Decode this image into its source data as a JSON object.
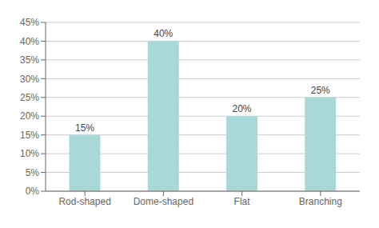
{
  "chart_data": {
    "type": "bar",
    "categories": [
      "Rod-shaped",
      "Dome-shaped",
      "Flat",
      "Branching"
    ],
    "values": [
      15,
      40,
      20,
      25
    ],
    "value_labels": [
      "15%",
      "40%",
      "20%",
      "25%"
    ],
    "data_labels": true,
    "color": "#a8d8d8",
    "ylim": [
      0,
      45
    ],
    "yticks": [
      {
        "value": 0,
        "label": "0%"
      },
      {
        "value": 5,
        "label": "5%"
      },
      {
        "value": 10,
        "label": "10%"
      },
      {
        "value": 15,
        "label": "15%"
      },
      {
        "value": 20,
        "label": "20%"
      },
      {
        "value": 25,
        "label": "25%"
      },
      {
        "value": 30,
        "label": "30%"
      },
      {
        "value": 35,
        "label": "35%"
      },
      {
        "value": 40,
        "label": "40%"
      },
      {
        "value": 45,
        "label": "45%"
      }
    ],
    "grid": true
  }
}
